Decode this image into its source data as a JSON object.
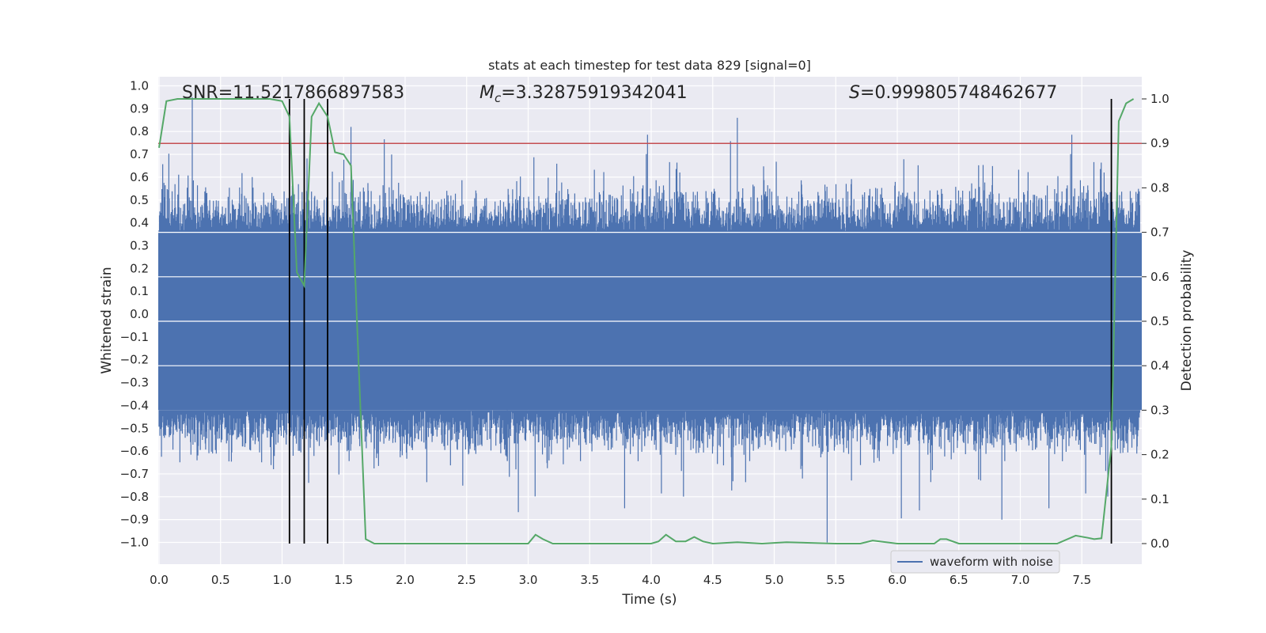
{
  "chart_data": {
    "type": "line",
    "title": "stats at each timestep for test data 829 [signal=0]",
    "xlabel": "Time (s)",
    "ylabel_left": "Whitened strain",
    "ylabel_right": "Detection probability",
    "xlim": [
      0.0,
      8.0
    ],
    "ylim_left": [
      -1.1,
      1.05
    ],
    "ylim_right": [
      -0.05,
      1.03
    ],
    "x_ticks": [
      0.0,
      0.5,
      1.0,
      1.5,
      2.0,
      2.5,
      3.0,
      3.5,
      4.0,
      4.5,
      5.0,
      5.5,
      6.0,
      6.5,
      7.0,
      7.5
    ],
    "x_tick_labels": [
      "0.0",
      "0.5",
      "1.0",
      "1.5",
      "2.0",
      "2.5",
      "3.0",
      "3.5",
      "4.0",
      "4.5",
      "5.0",
      "5.5",
      "6.0",
      "6.5",
      "7.0",
      "7.5"
    ],
    "y_left_ticks": [
      1.0,
      0.9,
      0.8,
      0.7,
      0.6,
      0.5,
      0.4,
      0.3,
      0.2,
      0.1,
      0.0,
      -0.1,
      -0.2,
      -0.3,
      -0.4,
      -0.5,
      -0.6,
      -0.7,
      -0.8,
      -0.9,
      -1.0
    ],
    "y_left_tick_labels": [
      "1.0",
      "0.9",
      "0.8",
      "0.7",
      "0.6",
      "0.5",
      "0.4",
      "0.3",
      "0.2",
      "0.1",
      "0.0",
      "−0.1",
      "−0.2",
      "−0.3",
      "−0.4",
      "−0.5",
      "−0.6",
      "−0.7",
      "−0.8",
      "−0.9",
      "−1.0"
    ],
    "y_right_ticks": [
      1.0,
      0.9,
      0.8,
      0.7,
      0.6,
      0.5,
      0.4,
      0.3,
      0.2,
      0.1,
      0.0
    ],
    "y_right_tick_labels": [
      "1.0",
      "0.9",
      "0.8",
      "0.7",
      "0.6",
      "0.5",
      "0.4",
      "0.3",
      "0.2",
      "0.1",
      "0.0"
    ],
    "annotations": {
      "snr": "SNR=11.5217866897583",
      "mc_symbol": "M",
      "mc_subscript": "c",
      "mc_value": "=3.32875919342041",
      "s_symbol": "S",
      "s_value": "=0.999805748462677"
    },
    "threshold": 0.9,
    "vertical_lines_s": [
      1.06,
      1.18,
      1.37,
      7.74
    ],
    "detection_probability": {
      "name": "detection probability",
      "x": [
        0.0,
        0.06,
        0.15,
        0.3,
        0.5,
        0.7,
        0.9,
        1.0,
        1.06,
        1.12,
        1.18,
        1.24,
        1.3,
        1.37,
        1.43,
        1.5,
        1.56,
        1.62,
        1.68,
        1.75,
        2.0,
        2.5,
        3.0,
        3.06,
        3.12,
        3.2,
        3.5,
        4.0,
        4.06,
        4.12,
        4.2,
        4.28,
        4.35,
        4.42,
        4.5,
        4.7,
        4.9,
        5.1,
        5.5,
        5.7,
        5.8,
        6.0,
        6.3,
        6.35,
        6.4,
        6.5,
        7.0,
        7.3,
        7.45,
        7.55,
        7.6,
        7.66,
        7.74,
        7.8,
        7.86,
        7.92
      ],
      "values": [
        0.89,
        0.995,
        1.0,
        1.0,
        1.0,
        1.0,
        1.0,
        0.995,
        0.96,
        0.61,
        0.58,
        0.96,
        0.99,
        0.96,
        0.88,
        0.875,
        0.85,
        0.42,
        0.01,
        0.0,
        0.0,
        0.0,
        0.0,
        0.02,
        0.01,
        0.0,
        0.0,
        0.0,
        0.005,
        0.02,
        0.005,
        0.005,
        0.015,
        0.005,
        0.0,
        0.003,
        0.0,
        0.003,
        0.0,
        0.0,
        0.007,
        0.0,
        0.0,
        0.01,
        0.01,
        0.0,
        0.0,
        0.0,
        0.018,
        0.013,
        0.01,
        0.012,
        0.22,
        0.95,
        0.99,
        1.0
      ]
    },
    "waveform": {
      "name": "waveform with noise",
      "envelope_y": [
        -0.42,
        0.36
      ]
    },
    "legend": {
      "label": "waveform with noise",
      "position": "lower-right"
    },
    "colors": {
      "waveform": "#4c72b0",
      "probability": "#55a868",
      "threshold": "#c44e52",
      "vlines": "#000000",
      "axes_bg": "#eaeaf2",
      "grid": "#ffffff"
    }
  }
}
